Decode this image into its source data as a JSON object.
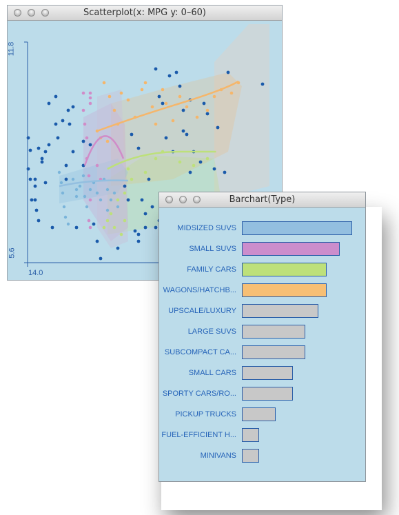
{
  "scatter_window": {
    "title": "Scatterplot(x: MPG y: 0–60)",
    "y_max_label": "11.8",
    "y_min_label": "5.6",
    "x_min_label": "14.0",
    "colors": {
      "background": "#bcdcea",
      "axis": "#2a5ea8",
      "dark_points": "#1a5aaa",
      "light_points": "#7ab4da",
      "midsized_suvs": "#93bfe0",
      "small_suvs": "#d08cc8",
      "family_cars": "#bde07a",
      "wagons_hatchbacks": "#f5b66b"
    }
  },
  "bar_window": {
    "title": "Barchart(Type)",
    "bars": [
      {
        "label": "MIDSIZED SUVS",
        "value": 13,
        "color": "#93bfe0"
      },
      {
        "label": "SMALL SUVS",
        "value": 11.5,
        "color": "#cc8dcc"
      },
      {
        "label": "FAMILY CARS",
        "value": 10,
        "color": "#bde07a"
      },
      {
        "label": "WAGONS/HATCHB...",
        "value": 10,
        "color": "#f7bf74"
      },
      {
        "label": "UPSCALE/LUXURY",
        "value": 9,
        "color": "#c8c8c8"
      },
      {
        "label": "LARGE SUVS",
        "value": 7.5,
        "color": "#c8c8c8"
      },
      {
        "label": "SUBCOMPACT CA...",
        "value": 7.5,
        "color": "#c8c8c8"
      },
      {
        "label": "SMALL CARS",
        "value": 6,
        "color": "#c8c8c8"
      },
      {
        "label": "SPORTY CARS/RO...",
        "value": 6,
        "color": "#c8c8c8"
      },
      {
        "label": "PICKUP TRUCKS",
        "value": 4,
        "color": "#c8c8c8"
      },
      {
        "label": "FUEL-EFFICIENT H...",
        "value": 2,
        "color": "#c8c8c8"
      },
      {
        "label": "MINIVANS",
        "value": 2,
        "color": "#c8c8c8"
      }
    ]
  }
}
